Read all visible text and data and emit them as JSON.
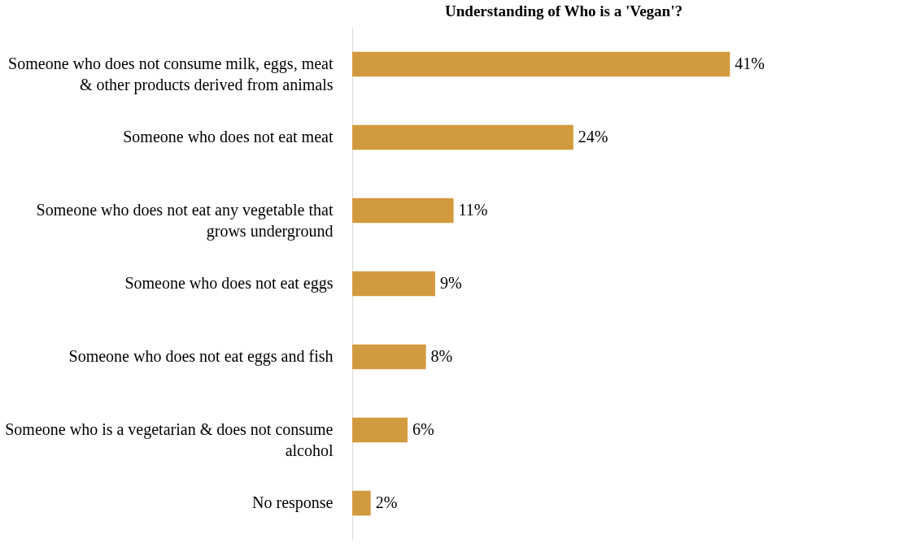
{
  "chart_data": {
    "type": "bar",
    "orientation": "horizontal",
    "title": "Understanding of Who is a  'Vegan'?",
    "categories": [
      "Someone who does not consume milk, eggs, meat & other products derived from animals",
      "Someone who does not eat meat",
      "Someone who does not eat any vegetable that grows underground",
      "Someone who does not eat eggs",
      "Someone who does not eat eggs and fish",
      "Someone who is a vegetarian & does not consume alcohol",
      "No response"
    ],
    "values": [
      41,
      24,
      11,
      9,
      8,
      6,
      2
    ],
    "value_labels": [
      "41%",
      "24%",
      "11%",
      "9%",
      "8%",
      "6%",
      "2%"
    ],
    "color": "#d29a3e"
  }
}
